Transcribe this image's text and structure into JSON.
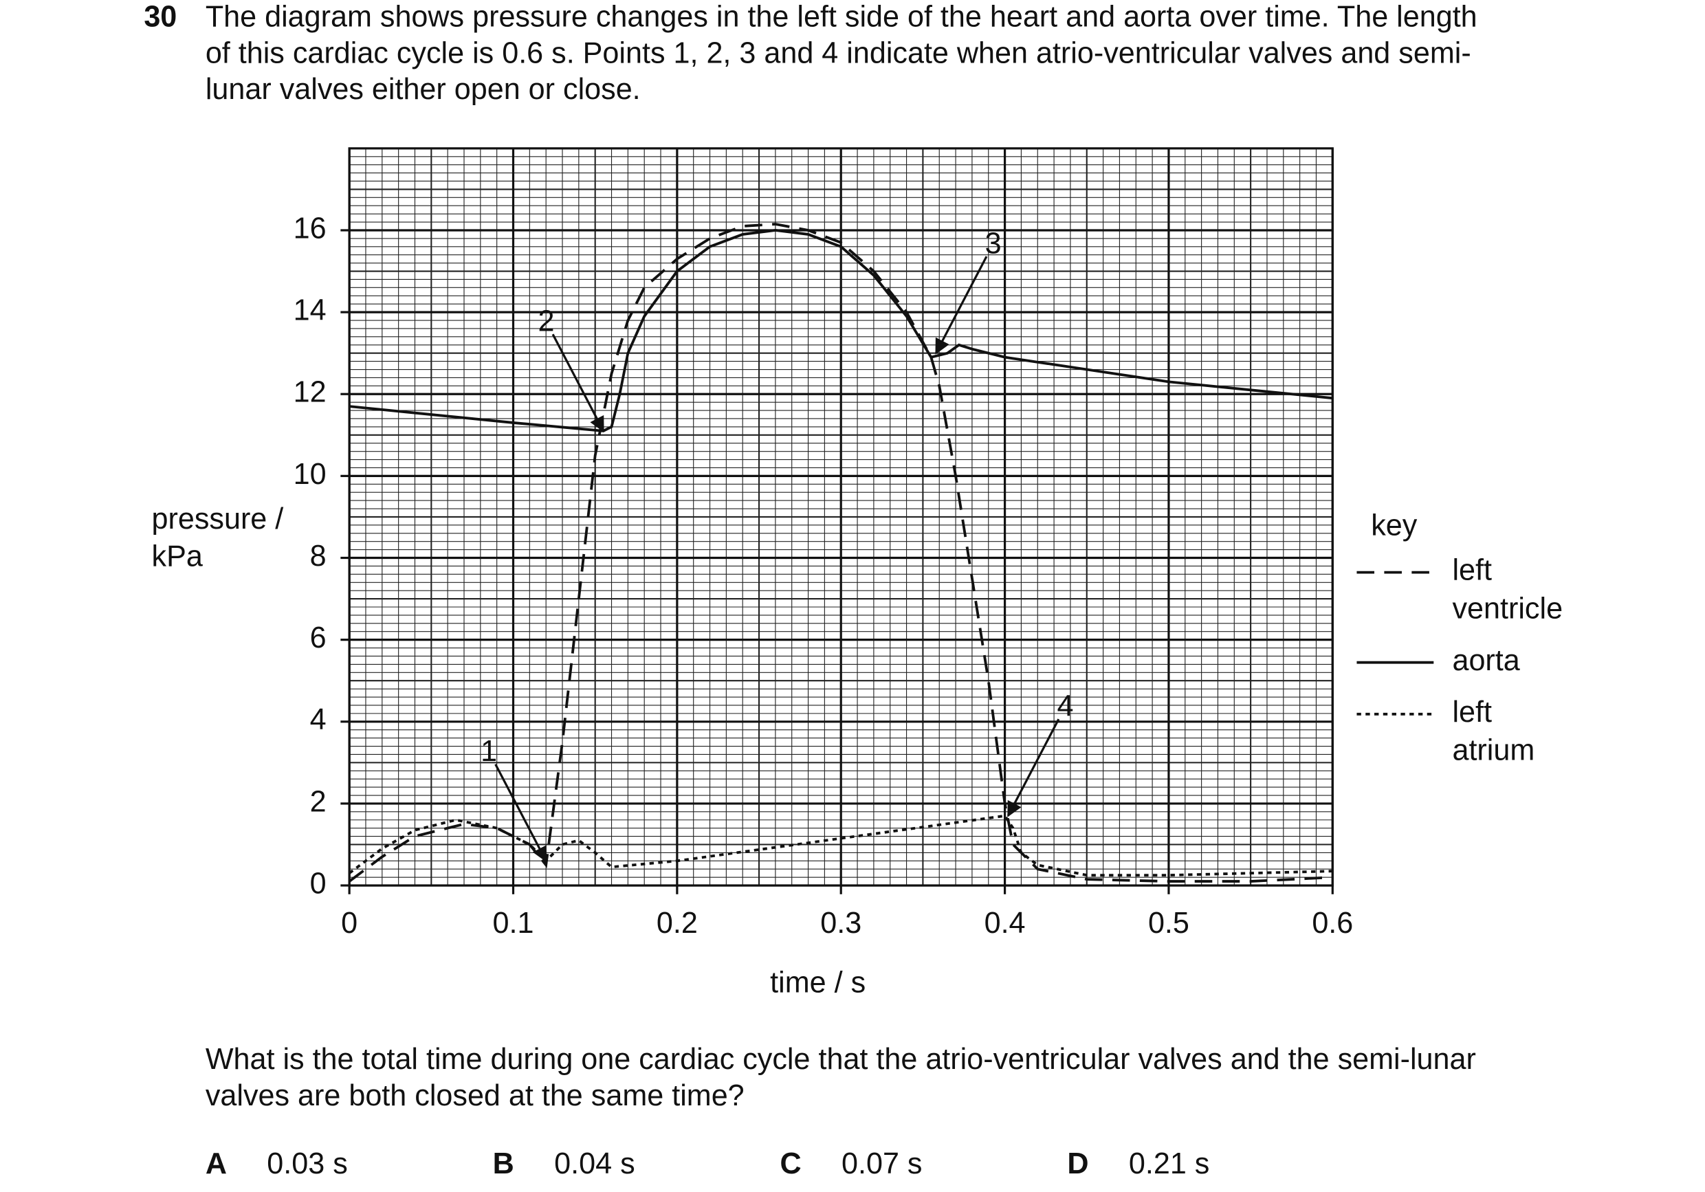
{
  "question_number": "30",
  "intro": [
    "The diagram shows pressure changes in the left side of the heart and aorta over time. The length",
    "of this cardiac cycle is 0.6 s. Points 1, 2, 3 and 4 indicate when atrio-ventricular valves and semi-",
    "lunar valves either open or close."
  ],
  "chart_data": {
    "type": "line",
    "y_label": [
      "pressure /",
      "kPa"
    ],
    "x_label": "time / s",
    "xlim": [
      0,
      0.6
    ],
    "ylim": [
      0,
      18
    ],
    "xticks": [
      0,
      0.1,
      0.2,
      0.3,
      0.4,
      0.5,
      0.6
    ],
    "yticks": [
      0,
      2,
      4,
      6,
      8,
      10,
      12,
      14,
      16
    ],
    "grid": true,
    "minor_grid": {
      "x": 0.01,
      "y": 0.2
    },
    "legend_title": "key",
    "legend": "right",
    "series": [
      {
        "name": "left ventricle",
        "color": "#111111",
        "dash": "dashed",
        "x": [
          0,
          0.02,
          0.04,
          0.07,
          0.09,
          0.11,
          0.12,
          0.13,
          0.14,
          0.15,
          0.16,
          0.17,
          0.18,
          0.2,
          0.22,
          0.24,
          0.26,
          0.28,
          0.3,
          0.32,
          0.34,
          0.355,
          0.36,
          0.37,
          0.38,
          0.39,
          0.4,
          0.405,
          0.42,
          0.45,
          0.5,
          0.55,
          0.6
        ],
        "values": [
          0.1,
          0.7,
          1.2,
          1.5,
          1.4,
          1.0,
          0.5,
          3.5,
          7,
          10.5,
          12.5,
          13.8,
          14.6,
          15.3,
          15.8,
          16.1,
          16.15,
          16.0,
          15.7,
          15.0,
          14.0,
          12.9,
          12.2,
          10,
          7.5,
          5,
          2.0,
          1.0,
          0.4,
          0.15,
          0.1,
          0.1,
          0.2
        ]
      },
      {
        "name": "aorta",
        "color": "#111111",
        "dash": "solid",
        "x": [
          0,
          0.05,
          0.1,
          0.155,
          0.16,
          0.165,
          0.17,
          0.18,
          0.2,
          0.22,
          0.24,
          0.26,
          0.28,
          0.3,
          0.32,
          0.34,
          0.355,
          0.365,
          0.372,
          0.38,
          0.4,
          0.45,
          0.5,
          0.55,
          0.6
        ],
        "values": [
          11.7,
          11.5,
          11.3,
          11.1,
          11.2,
          12,
          13,
          13.9,
          15,
          15.6,
          15.9,
          16.0,
          15.9,
          15.6,
          14.9,
          13.9,
          12.9,
          13.0,
          13.2,
          13.1,
          12.9,
          12.6,
          12.3,
          12.1,
          11.9
        ]
      },
      {
        "name": "left atrium",
        "color": "#111111",
        "dash": "dotted",
        "x": [
          0,
          0.02,
          0.04,
          0.065,
          0.09,
          0.11,
          0.12,
          0.13,
          0.14,
          0.15,
          0.16,
          0.2,
          0.3,
          0.4,
          0.405,
          0.41,
          0.42,
          0.45,
          0.5,
          0.6
        ],
        "values": [
          0.3,
          0.9,
          1.35,
          1.6,
          1.4,
          1.0,
          0.6,
          1.0,
          1.1,
          0.8,
          0.45,
          0.6,
          1.15,
          1.7,
          1.4,
          0.8,
          0.5,
          0.25,
          0.25,
          0.35
        ]
      }
    ],
    "annotations": [
      {
        "text": "1",
        "x": 0.12,
        "y": 0.6
      },
      {
        "text": "2",
        "x": 0.155,
        "y": 11.1
      },
      {
        "text": "3",
        "x": 0.358,
        "y": 13.0
      },
      {
        "text": "4",
        "x": 0.402,
        "y": 1.7
      }
    ]
  },
  "question": [
    "What is the total time during one cardiac cycle that the atrio-ventricular valves and the semi-lunar",
    "valves are both closed at the same time?"
  ],
  "options": [
    {
      "letter": "A",
      "text": "0.03 s"
    },
    {
      "letter": "B",
      "text": "0.04 s"
    },
    {
      "letter": "C",
      "text": "0.07 s"
    },
    {
      "letter": "D",
      "text": "0.21 s"
    }
  ]
}
